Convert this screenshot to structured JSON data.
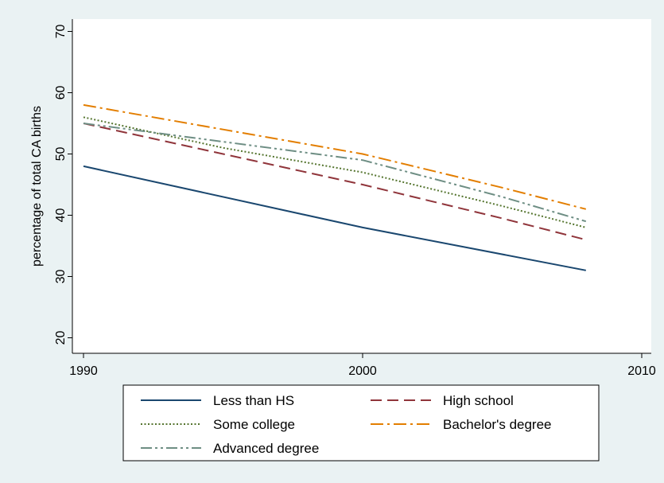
{
  "chart_data": {
    "type": "line",
    "title": "",
    "xlabel": "",
    "ylabel": "percentage of total CA births",
    "xlim": [
      1990,
      2010
    ],
    "ylim": [
      20,
      70
    ],
    "xticks": [
      1990,
      2000,
      2010
    ],
    "yticks": [
      20,
      30,
      40,
      50,
      60,
      70
    ],
    "grid": false,
    "legend_position": "bottom",
    "series": [
      {
        "name": "Less than HS",
        "color": "#1a476f",
        "dash": "solid",
        "x": [
          1990,
          2000,
          2008
        ],
        "y": [
          48,
          38,
          31
        ]
      },
      {
        "name": "High school",
        "color": "#90353b",
        "dash": "dash",
        "x": [
          1990,
          1995,
          2000,
          2005,
          2008
        ],
        "y": [
          55,
          50,
          45,
          39.5,
          36
        ]
      },
      {
        "name": "Some college",
        "color": "#55752f",
        "dash": "dot",
        "x": [
          1990,
          1995,
          2000,
          2005,
          2008
        ],
        "y": [
          56,
          51,
          47,
          41.5,
          38
        ]
      },
      {
        "name": "Bachelor's degree",
        "color": "#e37e00",
        "dash": "dashdot",
        "x": [
          1990,
          1995,
          2000,
          2005,
          2008
        ],
        "y": [
          58,
          54,
          50,
          44.5,
          41
        ]
      },
      {
        "name": "Advanced degree",
        "color": "#6e8e84",
        "dash": "dashdotdot",
        "x": [
          1990,
          1995,
          2000,
          2005,
          2008
        ],
        "y": [
          55,
          52,
          49,
          43,
          39
        ]
      }
    ]
  }
}
